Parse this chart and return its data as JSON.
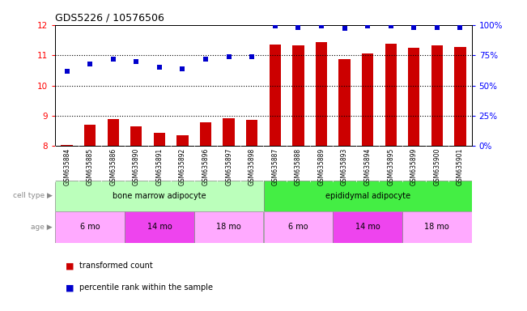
{
  "title": "GDS5226 / 10576506",
  "samples": [
    "GSM635884",
    "GSM635885",
    "GSM635886",
    "GSM635890",
    "GSM635891",
    "GSM635892",
    "GSM635896",
    "GSM635897",
    "GSM635898",
    "GSM635887",
    "GSM635888",
    "GSM635889",
    "GSM635893",
    "GSM635894",
    "GSM635895",
    "GSM635899",
    "GSM635900",
    "GSM635901"
  ],
  "bar_values": [
    8.05,
    8.7,
    8.9,
    8.65,
    8.45,
    8.35,
    8.8,
    8.92,
    8.87,
    11.35,
    11.32,
    11.42,
    10.88,
    11.05,
    11.38,
    11.25,
    11.32,
    11.28
  ],
  "dot_values": [
    62,
    68,
    72,
    70,
    65,
    64,
    72,
    74,
    74,
    99,
    98,
    99,
    97,
    99,
    99,
    98,
    98,
    98
  ],
  "bar_color": "#cc0000",
  "dot_color": "#0000cc",
  "ylim_left": [
    8,
    12
  ],
  "ylim_right": [
    0,
    100
  ],
  "yticks_left": [
    8,
    9,
    10,
    11,
    12
  ],
  "ytick_labels_right": [
    "0%",
    "25%",
    "50%",
    "75%",
    "100%"
  ],
  "cell_type_groups": [
    {
      "label": "bone marrow adipocyte",
      "start": 0,
      "end": 9,
      "color": "#bbffbb"
    },
    {
      "label": "epididymal adipocyte",
      "start": 9,
      "end": 18,
      "color": "#44ee44"
    }
  ],
  "age_groups": [
    {
      "label": "6 mo",
      "start": 0,
      "end": 3,
      "color": "#ffaaff"
    },
    {
      "label": "14 mo",
      "start": 3,
      "end": 6,
      "color": "#ee44ee"
    },
    {
      "label": "18 mo",
      "start": 6,
      "end": 9,
      "color": "#ffaaff"
    },
    {
      "label": "6 mo",
      "start": 9,
      "end": 12,
      "color": "#ffaaff"
    },
    {
      "label": "14 mo",
      "start": 12,
      "end": 15,
      "color": "#ee44ee"
    },
    {
      "label": "18 mo",
      "start": 15,
      "end": 18,
      "color": "#ffaaff"
    }
  ],
  "legend_bar_label": "transformed count",
  "legend_dot_label": "percentile rank within the sample",
  "cell_type_label": "cell type",
  "age_label": "age",
  "background_color": "#ffffff",
  "plot_bg": "#ffffff",
  "xtick_bg": "#dddddd",
  "grid_color": "black"
}
